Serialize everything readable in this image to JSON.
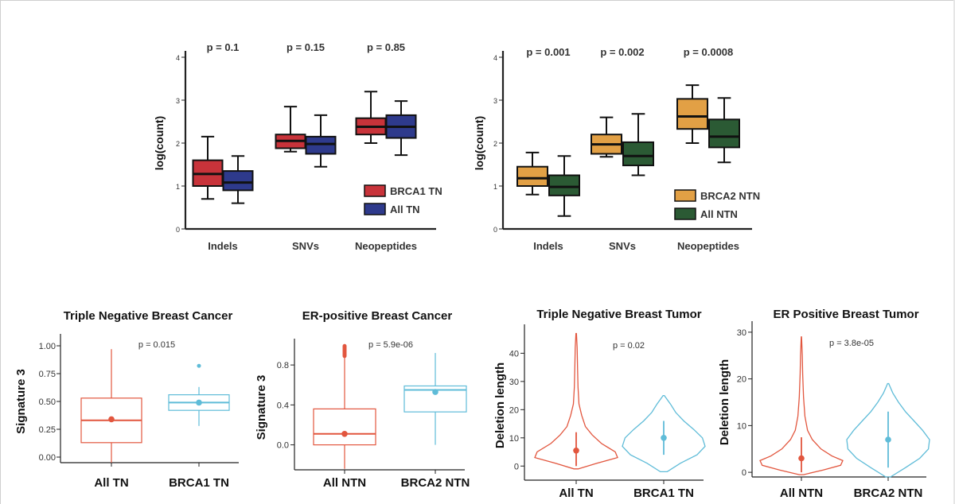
{
  "colors": {
    "brca1": "#c8333a",
    "alltn": "#2e3a8c",
    "brca2": "#e2a045",
    "allntn": "#2b5a34",
    "red_light": "#e2563e",
    "cyan_light": "#5fbcd8"
  },
  "chart_data": [
    {
      "type": "box",
      "id": "top-left",
      "title": "",
      "ylabel": "log(count)",
      "xlabel": "",
      "ylim": [
        0,
        4
      ],
      "yticks": [
        0,
        1,
        2,
        3,
        4
      ],
      "categories": [
        "Indels",
        "SNVs",
        "Neopeptides"
      ],
      "annotations": [
        "p = 0.1",
        "p = 0.15",
        "p = 0.85"
      ],
      "legend": {
        "position": "bottom-right"
      },
      "series": [
        {
          "name": "BRCA1 TN",
          "color_key": "brca1",
          "boxes": [
            {
              "min": 0.7,
              "q1": 1.0,
              "median": 1.28,
              "q3": 1.6,
              "max": 2.15
            },
            {
              "min": 1.8,
              "q1": 1.88,
              "median": 2.05,
              "q3": 2.2,
              "max": 2.85
            },
            {
              "min": 2.0,
              "q1": 2.2,
              "median": 2.38,
              "q3": 2.58,
              "max": 3.2
            }
          ]
        },
        {
          "name": "All TN",
          "color_key": "alltn",
          "boxes": [
            {
              "min": 0.6,
              "q1": 0.9,
              "median": 1.08,
              "q3": 1.35,
              "max": 1.7
            },
            {
              "min": 1.45,
              "q1": 1.75,
              "median": 1.98,
              "q3": 2.15,
              "max": 2.65
            },
            {
              "min": 1.72,
              "q1": 2.12,
              "median": 2.38,
              "q3": 2.65,
              "max": 2.98
            }
          ]
        }
      ]
    },
    {
      "type": "box",
      "id": "top-right",
      "title": "",
      "ylabel": "log(count)",
      "xlabel": "",
      "ylim": [
        0,
        4
      ],
      "yticks": [
        0,
        1,
        2,
        3,
        4
      ],
      "categories": [
        "Indels",
        "SNVs",
        "Neopeptides"
      ],
      "annotations": [
        "p = 0.001",
        "p = 0.002",
        "p = 0.0008"
      ],
      "legend": {
        "position": "bottom-right"
      },
      "series": [
        {
          "name": "BRCA2 NTN",
          "color_key": "brca2",
          "boxes": [
            {
              "min": 0.8,
              "q1": 1.0,
              "median": 1.18,
              "q3": 1.45,
              "max": 1.78
            },
            {
              "min": 1.68,
              "q1": 1.75,
              "median": 1.97,
              "q3": 2.2,
              "max": 2.6
            },
            {
              "min": 2.0,
              "q1": 2.33,
              "median": 2.62,
              "q3": 3.03,
              "max": 3.35
            }
          ]
        },
        {
          "name": "All NTN",
          "color_key": "allntn",
          "boxes": [
            {
              "min": 0.3,
              "q1": 0.78,
              "median": 0.98,
              "q3": 1.25,
              "max": 1.7
            },
            {
              "min": 1.25,
              "q1": 1.48,
              "median": 1.7,
              "q3": 2.02,
              "max": 2.68
            },
            {
              "min": 1.55,
              "q1": 1.9,
              "median": 2.15,
              "q3": 2.55,
              "max": 3.05
            }
          ]
        }
      ]
    },
    {
      "type": "box",
      "id": "bottom-1",
      "title": "Triple Negative Breast Cancer",
      "ylabel": "Signature 3",
      "xlabel": "",
      "ylim": [
        -0.05,
        1.05
      ],
      "yticks": [
        0.0,
        0.25,
        0.5,
        0.75,
        1.0
      ],
      "ytick_labels": [
        "0.00",
        "0.25",
        "0.50",
        "0.75",
        "1.00"
      ],
      "categories": [
        "All TN",
        "BRCA1 TN"
      ],
      "annotation": "p = 0.015",
      "color_keys": [
        "red_light",
        "cyan_light"
      ],
      "boxes": [
        {
          "min": -0.05,
          "q1": 0.13,
          "median": 0.33,
          "q3": 0.53,
          "max": 0.97,
          "mean": 0.34,
          "outliers": []
        },
        {
          "min": 0.28,
          "q1": 0.42,
          "median": 0.49,
          "q3": 0.56,
          "max": 0.63,
          "mean": 0.49,
          "outliers": [
            0.82
          ]
        }
      ]
    },
    {
      "type": "box",
      "id": "bottom-2",
      "title": "ER-positive Breast Cancer",
      "ylabel": "Signature 3",
      "xlabel": "",
      "ylim": [
        -0.25,
        1.0
      ],
      "yticks": [
        0.0,
        0.4,
        0.8
      ],
      "ytick_labels": [
        "0.0",
        "0.4",
        "0.8"
      ],
      "categories": [
        "All NTN",
        "BRCA2 NTN"
      ],
      "annotation": "p = 5.9e-06",
      "color_keys": [
        "red_light",
        "cyan_light"
      ],
      "boxes": [
        {
          "min": -0.24,
          "q1": 0.0,
          "median": 0.11,
          "q3": 0.36,
          "max": 0.88,
          "mean": 0.11,
          "outliers": [
            0.89,
            0.9,
            0.91,
            0.92,
            0.93,
            0.94,
            0.95,
            0.96,
            0.97,
            0.98,
            0.99
          ]
        },
        {
          "min": 0.0,
          "q1": 0.33,
          "median": 0.55,
          "q3": 0.59,
          "max": 0.92,
          "mean": 0.53,
          "outliers": []
        }
      ]
    },
    {
      "type": "violin",
      "id": "bottom-3",
      "title": "Triple Negative Breast Tumor",
      "ylabel": "Deletion length",
      "xlabel": "",
      "ylim": [
        -5,
        48
      ],
      "yticks": [
        0,
        10,
        20,
        30,
        40
      ],
      "categories": [
        "All TN",
        "BRCA1 TN"
      ],
      "annotation": "p = 0.02",
      "color_keys": [
        "red_light",
        "cyan_light"
      ],
      "violins": [
        {
          "min": -1,
          "max": 47,
          "mean": 5.5,
          "line_low": 0,
          "line_high": 12,
          "profile": [
            [
              -1,
              0.05
            ],
            [
              1,
              0.45
            ],
            [
              3,
              0.9
            ],
            [
              5,
              0.85
            ],
            [
              8,
              0.55
            ],
            [
              11,
              0.35
            ],
            [
              14,
              0.2
            ],
            [
              18,
              0.12
            ],
            [
              22,
              0.06
            ],
            [
              28,
              0.04
            ],
            [
              35,
              0.03
            ],
            [
              42,
              0.02
            ],
            [
              47,
              0.005
            ]
          ]
        },
        {
          "min": -2,
          "max": 25,
          "mean": 10,
          "line_low": 4,
          "line_high": 16,
          "profile": [
            [
              -2,
              0.05
            ],
            [
              1,
              0.25
            ],
            [
              4,
              0.5
            ],
            [
              7,
              0.62
            ],
            [
              10,
              0.58
            ],
            [
              13,
              0.45
            ],
            [
              16,
              0.3
            ],
            [
              19,
              0.18
            ],
            [
              22,
              0.1
            ],
            [
              25,
              0.01
            ]
          ]
        }
      ]
    },
    {
      "type": "violin",
      "id": "bottom-4",
      "title": "ER Positive Breast Tumor",
      "ylabel": "Deletion length",
      "xlabel": "",
      "ylim": [
        -1,
        31
      ],
      "yticks": [
        0,
        10,
        20,
        30
      ],
      "categories": [
        "All NTN",
        "BRCA2 NTN"
      ],
      "annotation": "p = 3.8e-05",
      "color_keys": [
        "red_light",
        "cyan_light"
      ],
      "violins": [
        {
          "min": -0.5,
          "max": 29,
          "mean": 3,
          "line_low": 0,
          "line_high": 7.5,
          "profile": [
            [
              -0.5,
              0.05
            ],
            [
              0.5,
              0.5
            ],
            [
              1.5,
              0.9
            ],
            [
              2.5,
              0.95
            ],
            [
              3.5,
              0.7
            ],
            [
              5,
              0.45
            ],
            [
              7,
              0.25
            ],
            [
              9,
              0.14
            ],
            [
              12,
              0.08
            ],
            [
              16,
              0.05
            ],
            [
              21,
              0.03
            ],
            [
              25,
              0.02
            ],
            [
              29,
              0.004
            ]
          ]
        },
        {
          "min": -1,
          "max": 19,
          "mean": 7,
          "line_low": 1,
          "line_high": 13,
          "profile": [
            [
              -1,
              0.04
            ],
            [
              1,
              0.3
            ],
            [
              3,
              0.55
            ],
            [
              5,
              0.7
            ],
            [
              7,
              0.72
            ],
            [
              9,
              0.6
            ],
            [
              11,
              0.45
            ],
            [
              13,
              0.3
            ],
            [
              15,
              0.18
            ],
            [
              17,
              0.08
            ],
            [
              19,
              0.01
            ]
          ]
        }
      ]
    }
  ]
}
